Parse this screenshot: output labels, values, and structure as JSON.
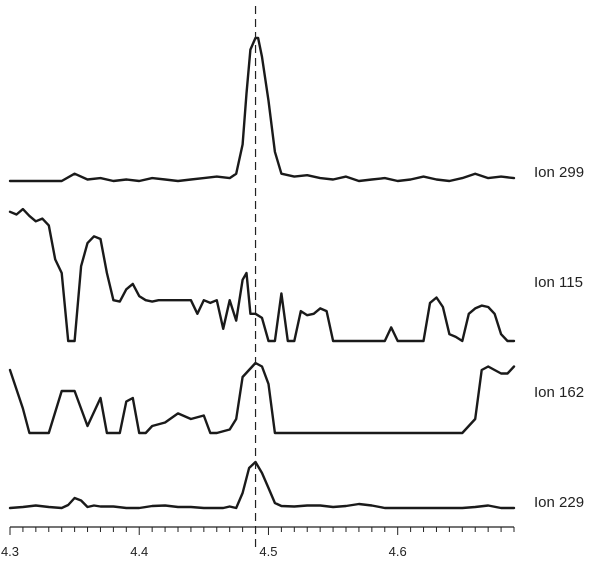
{
  "chart_data": {
    "type": "line",
    "title": "",
    "xlabel": "",
    "ylabel": "",
    "xlim": [
      4.3,
      4.69
    ],
    "ylim": [
      0,
      1
    ],
    "grid": false,
    "legend": "none",
    "x_ticks": [
      4.3,
      4.4,
      4.5,
      4.6
    ],
    "x_tick_labels": [
      "4.3",
      "4.4",
      "4.5",
      "4.6"
    ],
    "minor_tick_step": 0.01,
    "marker_x": 4.49,
    "series": [
      {
        "name": "Ion 299",
        "x": [
          4.3,
          4.32,
          4.34,
          4.35,
          4.36,
          4.37,
          4.38,
          4.39,
          4.4,
          4.41,
          4.42,
          4.43,
          4.44,
          4.45,
          4.46,
          4.47,
          4.475,
          4.48,
          4.483,
          4.486,
          4.49,
          4.492,
          4.495,
          4.5,
          4.505,
          4.51,
          4.52,
          4.53,
          4.54,
          4.55,
          4.56,
          4.57,
          4.58,
          4.59,
          4.6,
          4.61,
          4.62,
          4.63,
          4.64,
          4.65,
          4.66,
          4.67,
          4.68,
          4.69
        ],
        "y": [
          0.0,
          0.0,
          0.0,
          0.05,
          0.01,
          0.02,
          0.0,
          0.01,
          0.0,
          0.02,
          0.01,
          0.0,
          0.01,
          0.02,
          0.03,
          0.02,
          0.05,
          0.25,
          0.6,
          0.9,
          0.98,
          0.98,
          0.85,
          0.55,
          0.2,
          0.05,
          0.03,
          0.04,
          0.02,
          0.01,
          0.03,
          0.0,
          0.01,
          0.02,
          0.0,
          0.01,
          0.03,
          0.01,
          0.0,
          0.02,
          0.05,
          0.02,
          0.03,
          0.02
        ]
      },
      {
        "name": "Ion 115",
        "x": [
          4.3,
          4.305,
          4.31,
          4.315,
          4.32,
          4.325,
          4.33,
          4.335,
          4.34,
          4.345,
          4.35,
          4.355,
          4.36,
          4.365,
          4.37,
          4.375,
          4.38,
          4.385,
          4.39,
          4.395,
          4.4,
          4.405,
          4.41,
          4.415,
          4.42,
          4.43,
          4.44,
          4.445,
          4.45,
          4.455,
          4.46,
          4.465,
          4.47,
          4.475,
          4.48,
          4.483,
          4.486,
          4.49,
          4.495,
          4.5,
          4.505,
          4.51,
          4.515,
          4.52,
          4.525,
          4.53,
          4.535,
          4.54,
          4.545,
          4.55,
          4.56,
          4.57,
          4.58,
          4.59,
          4.595,
          4.6,
          4.61,
          4.62,
          4.625,
          4.63,
          4.635,
          4.64,
          4.645,
          4.65,
          4.655,
          4.66,
          4.665,
          4.67,
          4.675,
          4.68,
          4.685,
          4.69
        ],
        "y": [
          0.95,
          0.93,
          0.97,
          0.92,
          0.88,
          0.9,
          0.85,
          0.6,
          0.5,
          0.0,
          0.0,
          0.55,
          0.72,
          0.77,
          0.75,
          0.5,
          0.3,
          0.29,
          0.38,
          0.42,
          0.33,
          0.3,
          0.29,
          0.3,
          0.3,
          0.3,
          0.3,
          0.2,
          0.3,
          0.28,
          0.3,
          0.09,
          0.3,
          0.15,
          0.45,
          0.5,
          0.2,
          0.2,
          0.17,
          0.0,
          0.0,
          0.35,
          0.0,
          0.0,
          0.22,
          0.19,
          0.2,
          0.24,
          0.22,
          0.0,
          0.0,
          0.0,
          0.0,
          0.0,
          0.1,
          0.0,
          0.0,
          0.0,
          0.28,
          0.32,
          0.25,
          0.05,
          0.03,
          0.0,
          0.2,
          0.24,
          0.26,
          0.25,
          0.2,
          0.05,
          0.0,
          0.0
        ]
      },
      {
        "name": "Ion 162",
        "x": [
          4.3,
          4.31,
          4.315,
          4.32,
          4.325,
          4.33,
          4.34,
          4.35,
          4.36,
          4.37,
          4.375,
          4.38,
          4.385,
          4.39,
          4.395,
          4.4,
          4.405,
          4.41,
          4.42,
          4.43,
          4.44,
          4.45,
          4.455,
          4.46,
          4.47,
          4.475,
          4.48,
          4.49,
          4.495,
          4.5,
          4.505,
          4.51,
          4.52,
          4.53,
          4.54,
          4.55,
          4.6,
          4.65,
          4.66,
          4.665,
          4.67,
          4.675,
          4.68,
          4.685,
          4.69
        ],
        "y": [
          0.9,
          0.35,
          0.0,
          0.0,
          0.0,
          0.0,
          0.6,
          0.6,
          0.1,
          0.5,
          0.0,
          0.0,
          0.0,
          0.45,
          0.5,
          0.0,
          0.0,
          0.1,
          0.15,
          0.28,
          0.2,
          0.25,
          0.0,
          0.0,
          0.05,
          0.2,
          0.8,
          1.0,
          0.95,
          0.7,
          0.0,
          0.0,
          0.0,
          0.0,
          0.0,
          0.0,
          0.0,
          0.0,
          0.2,
          0.9,
          0.95,
          0.9,
          0.85,
          0.85,
          0.95
        ]
      },
      {
        "name": "Ion 229",
        "x": [
          4.3,
          4.31,
          4.32,
          4.33,
          4.34,
          4.345,
          4.35,
          4.355,
          4.36,
          4.365,
          4.37,
          4.38,
          4.39,
          4.4,
          4.41,
          4.42,
          4.43,
          4.44,
          4.45,
          4.46,
          4.465,
          4.47,
          4.475,
          4.48,
          4.485,
          4.49,
          4.495,
          4.5,
          4.505,
          4.51,
          4.52,
          4.53,
          4.54,
          4.55,
          4.56,
          4.57,
          4.58,
          4.59,
          4.6,
          4.61,
          4.62,
          4.63,
          4.64,
          4.65,
          4.66,
          4.67,
          4.68,
          4.69
        ],
        "y": [
          0.0,
          0.02,
          0.05,
          0.02,
          0.0,
          0.06,
          0.2,
          0.15,
          0.02,
          0.05,
          0.03,
          0.03,
          0.0,
          0.0,
          0.04,
          0.05,
          0.02,
          0.02,
          0.0,
          0.0,
          0.0,
          0.03,
          0.0,
          0.3,
          0.8,
          0.92,
          0.7,
          0.4,
          0.1,
          0.04,
          0.03,
          0.05,
          0.05,
          0.02,
          0.04,
          0.08,
          0.05,
          0.0,
          0.0,
          0.0,
          0.0,
          0.0,
          0.0,
          0.0,
          0.02,
          0.05,
          0.0,
          0.0
        ]
      }
    ]
  }
}
